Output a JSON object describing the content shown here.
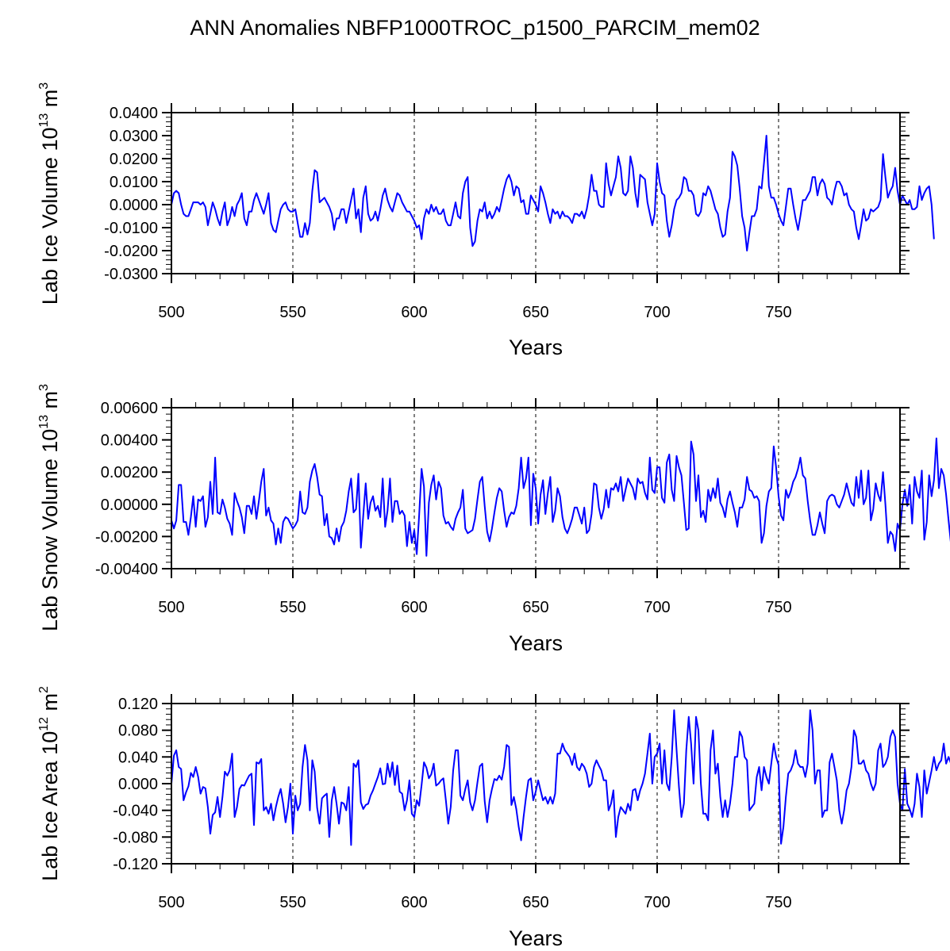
{
  "chart_data": [
    {
      "type": "line",
      "title": "ANN Anomalies NBFP1000TROC_p1500_PARCIM_mem02",
      "ylabel": "Lab Ice Volume 10^13 m^3",
      "ylabel_main": "Lab Ice Volume 10",
      "ylabel_exp": "13",
      "ylabel_unit": " m",
      "ylabel_unit_exp": "3",
      "xlabel": "Years",
      "xlim": [
        500,
        799
      ],
      "ylim": [
        -0.03,
        0.04
      ],
      "yticks": [
        0.04,
        0.03,
        0.02,
        0.01,
        0.0,
        -0.01,
        -0.02,
        -0.03
      ],
      "ytick_labels": [
        "0.0400",
        "0.0300",
        "0.0200",
        "0.0100",
        "0.0000",
        "-0.0100",
        "-0.0200",
        "-0.0300"
      ],
      "xticks": [
        500,
        550,
        600,
        650,
        700,
        750
      ],
      "xtick_labels": [
        "500",
        "550",
        "600",
        "650",
        "700",
        "750"
      ],
      "x_start": 500,
      "color": "#0000ff",
      "values": [
        0.0,
        0.005,
        0.006,
        0.005,
        0.0,
        -0.004,
        -0.005,
        -0.005,
        -0.002,
        0.001,
        0.001,
        0.001,
        0.0,
        0.001,
        -0.001,
        -0.009,
        -0.004,
        0.001,
        -0.002,
        -0.006,
        -0.009,
        -0.003,
        0.001,
        -0.009,
        -0.006,
        -0.001,
        -0.005,
        0.0,
        0.002,
        0.005,
        -0.006,
        -0.009,
        -0.003,
        -0.003,
        0.002,
        0.005,
        0.002,
        -0.001,
        -0.004,
        0.0,
        0.005,
        -0.008,
        -0.011,
        -0.012,
        -0.007,
        -0.002,
        0.0,
        0.001,
        -0.002,
        -0.003,
        -0.003,
        -0.002,
        -0.008,
        -0.014,
        -0.014,
        -0.008,
        -0.013,
        -0.008,
        0.006,
        0.015,
        0.014,
        0.001,
        0.002,
        0.003,
        0.001,
        -0.001,
        -0.004,
        -0.011,
        -0.006,
        -0.006,
        -0.002,
        -0.002,
        -0.008,
        -0.003,
        0.002,
        0.007,
        -0.006,
        -0.002,
        -0.012,
        0.003,
        0.008,
        -0.004,
        -0.007,
        -0.006,
        -0.003,
        -0.007,
        -0.002,
        0.004,
        0.007,
        0.002,
        -0.001,
        -0.003,
        0.001,
        0.005,
        0.004,
        0.001,
        -0.001,
        -0.003,
        -0.003,
        -0.005,
        -0.007,
        -0.01,
        -0.009,
        -0.015,
        -0.006,
        -0.002,
        -0.004,
        0.0,
        -0.003,
        -0.001,
        -0.004,
        -0.004,
        -0.002,
        -0.007,
        -0.009,
        -0.009,
        -0.004,
        0.001,
        -0.005,
        -0.006,
        0.005,
        0.01,
        0.012,
        -0.01,
        -0.018,
        -0.016,
        -0.007,
        -0.002,
        -0.003,
        0.001,
        -0.006,
        -0.003,
        -0.006,
        -0.004,
        -0.001,
        -0.003,
        0.002,
        0.007,
        0.011,
        0.013,
        0.01,
        0.004,
        0.008,
        0.007,
        0.001,
        0.002,
        -0.004,
        -0.004,
        0.004,
        0.002,
        0.0,
        -0.003,
        0.008,
        0.005,
        0.001,
        -0.004,
        -0.008,
        -0.002,
        -0.004,
        -0.003,
        -0.006,
        -0.003,
        -0.005,
        -0.005,
        -0.006,
        -0.008,
        -0.004,
        -0.004,
        -0.005,
        -0.003,
        -0.006,
        -0.002,
        0.004,
        0.013,
        0.006,
        0.006,
        0.0,
        -0.001,
        -0.001,
        0.018,
        0.009,
        0.004,
        0.008,
        0.012,
        0.021,
        0.016,
        0.005,
        0.004,
        0.006,
        0.021,
        0.016,
        0.005,
        -0.001,
        0.013,
        0.012,
        0.011,
        0.001,
        -0.004,
        -0.009,
        -0.004,
        0.018,
        0.01,
        0.005,
        0.004,
        -0.007,
        -0.014,
        -0.009,
        -0.002,
        0.002,
        0.003,
        0.005,
        0.012,
        0.011,
        0.006,
        0.006,
        0.004,
        -0.004,
        -0.005,
        -0.003,
        0.005,
        0.004,
        0.008,
        0.006,
        0.002,
        -0.002,
        -0.004,
        -0.01,
        -0.014,
        -0.013,
        -0.003,
        0.003,
        0.023,
        0.021,
        0.017,
        0.007,
        -0.005,
        -0.01,
        -0.02,
        -0.012,
        -0.005,
        -0.005,
        -0.002,
        0.008,
        0.007,
        0.018,
        0.03,
        0.008,
        0.003,
        0.003,
        0.0,
        -0.004,
        -0.007,
        -0.009,
        -0.001,
        0.007,
        0.007,
        0.0,
        -0.006,
        -0.011,
        -0.005,
        0.002,
        0.002,
        0.004,
        0.006,
        0.012,
        0.012,
        0.004,
        0.009,
        0.011,
        0.009,
        0.003,
        0.002,
        0.0,
        0.006,
        0.01,
        0.01,
        0.008,
        0.004,
        0.005,
        0.0,
        -0.002,
        -0.003,
        -0.01,
        -0.015,
        -0.009,
        -0.002,
        -0.007,
        -0.006,
        -0.002,
        -0.003,
        -0.002,
        -0.001,
        0.002,
        0.022,
        0.012,
        0.003,
        0.006,
        0.008,
        0.016,
        0.006,
        0.0,
        0.004,
        0.002,
        0.0,
        0.002,
        -0.002,
        -0.002,
        -0.001,
        0.008,
        0.002,
        0.005,
        0.007,
        0.008,
        0.0,
        -0.015
      ],
      "vlines": [
        550,
        600,
        650,
        700,
        750
      ]
    },
    {
      "type": "line",
      "ylabel": "Lab Snow Volume 10^13 m^3",
      "ylabel_main": "Lab Snow Volume 10",
      "ylabel_exp": "13",
      "ylabel_unit": " m",
      "ylabel_unit_exp": "3",
      "xlabel": "Years",
      "xlim": [
        500,
        799
      ],
      "ylim": [
        -0.004,
        0.006
      ],
      "yticks": [
        0.006,
        0.004,
        0.002,
        0.0,
        -0.002,
        -0.004
      ],
      "ytick_labels": [
        "0.00600",
        "0.00400",
        "0.00200",
        "0.00000",
        "-0.00200",
        "-0.00400"
      ],
      "xticks": [
        500,
        550,
        600,
        650,
        700,
        750
      ],
      "xtick_labels": [
        "500",
        "550",
        "600",
        "650",
        "700",
        "750"
      ],
      "x_start": 500,
      "color": "#0000ff",
      "values": [
        -0.001,
        -0.0015,
        -0.001,
        0.0012,
        0.0012,
        -0.0011,
        -0.0011,
        -0.0019,
        -0.0008,
        0.0005,
        -0.0014,
        0.0003,
        0.0002,
        0.0005,
        -0.0014,
        -0.0008,
        0.0014,
        -0.0006,
        0.0029,
        -0.0005,
        -0.0006,
        0.0003,
        -0.0002,
        -0.0009,
        -0.0012,
        -0.0019,
        0.0007,
        0.0002,
        -0.0002,
        -0.0008,
        -0.0018,
        -0.0001,
        -0.0001,
        -0.0006,
        0.0005,
        -0.0009,
        0.0002,
        0.0014,
        0.0022,
        -0.0007,
        -0.0002,
        -0.001,
        -0.0012,
        -0.0025,
        -0.0015,
        -0.0024,
        -0.0011,
        -0.0008,
        -0.0009,
        -0.0012,
        -0.0015,
        -0.0013,
        -0.001,
        0.0008,
        -0.0005,
        -0.0006,
        -0.0002,
        0.0014,
        0.0021,
        0.0025,
        0.0017,
        0.0006,
        0.0005,
        -0.0013,
        -0.0006,
        -0.002,
        -0.0021,
        -0.0025,
        -0.0015,
        -0.0023,
        -0.0014,
        -0.0011,
        -0.0004,
        0.0008,
        0.0016,
        -0.0005,
        -0.0003,
        0.0019,
        -0.0027,
        -0.0007,
        0.0013,
        -0.0009,
        0.0001,
        0.0005,
        -0.0004,
        -0.0001,
        -0.0008,
        0.0016,
        -0.0014,
        -0.0004,
        0.0016,
        -0.0011,
        0.0002,
        0.0002,
        -0.0006,
        -0.0004,
        -0.0007,
        -0.0026,
        -0.0011,
        -0.0024,
        -0.0016,
        -0.0031,
        -0.0007,
        0.0022,
        0.0011,
        -0.0032,
        0.0001,
        0.0012,
        0.0018,
        0.0003,
        0.0014,
        0.001,
        -0.0007,
        -0.0012,
        -0.0011,
        -0.0014,
        -0.0016,
        -0.0009,
        -0.0005,
        -0.0002,
        0.0009,
        -0.0015,
        -0.0018,
        -0.0017,
        -0.0016,
        -0.0009,
        0.0003,
        0.0014,
        0.0017,
        -0.0001,
        -0.0017,
        -0.0023,
        -0.0015,
        -0.0005,
        0.0004,
        0.001,
        0.0008,
        -0.0004,
        -0.0014,
        -0.0008,
        -0.0005,
        -0.0006,
        -0.0001,
        0.001,
        0.0029,
        0.001,
        0.0016,
        0.0029,
        -0.0013,
        0.0019,
        0.001,
        -0.0012,
        0.0006,
        0.0015,
        -0.0006,
        0.0007,
        0.0017,
        -0.0011,
        -0.0004,
        0.001,
        0.0005,
        -0.0008,
        -0.0015,
        -0.0018,
        -0.0014,
        -0.0009,
        -0.0002,
        -0.0002,
        -0.0007,
        -0.0012,
        -0.0002,
        -0.0018,
        -0.0016,
        -0.0006,
        0.0013,
        0.0012,
        -0.0002,
        -0.0009,
        -0.0003,
        0.0009,
        -0.0002,
        0.001,
        0.0009,
        0.0013,
        0.0008,
        0.0017,
        0.0002,
        0.0009,
        0.0016,
        0.0013,
        0.001,
        0.0003,
        0.0016,
        0.0013,
        0.0014,
        0.0007,
        0.0003,
        0.0029,
        0.0009,
        0.0007,
        0.0023,
        0.0023,
        0.0004,
        0.0001,
        0.0026,
        0.0031,
        0.0009,
        0.0002,
        0.003,
        0.0023,
        0.0018,
        0.0001,
        -0.0016,
        -0.0015,
        0.0039,
        0.0031,
        0.0002,
        0.0018,
        -0.0008,
        -0.0004,
        -0.0011,
        0.0009,
        0.0002,
        0.001,
        0.0004,
        0.0016,
        0.0001,
        -0.0002,
        -0.0008,
        0.0003,
        0.0008,
        0.0001,
        -0.0005,
        -0.0014,
        -0.0002,
        -0.0002,
        0.0003,
        0.0017,
        0.0009,
        0.0008,
        0.0004,
        0.0005,
        0.0002,
        -0.0024,
        -0.0018,
        -0.0001,
        0.0008,
        0.001,
        0.0036,
        0.0023,
        0.0005,
        -0.0007,
        -0.001,
        0.0009,
        0.0004,
        0.0008,
        0.0014,
        0.0017,
        0.0022,
        0.0029,
        0.0018,
        0.0016,
        0.0002,
        -0.001,
        -0.0019,
        -0.0019,
        -0.0013,
        -0.0005,
        -0.0012,
        -0.0018,
        0.0002,
        0.0005,
        0.0006,
        0.0005,
        0.0,
        -0.0002,
        0.0002,
        0.0006,
        0.0013,
        0.0007,
        0.0001,
        -0.0001,
        0.0017,
        0.0004,
        0.0021,
        0.0,
        0.0004,
        0.0021,
        -0.001,
        -0.0003,
        0.0013,
        0.0006,
        0.0002,
        0.002,
        0.0,
        -0.0024,
        -0.0017,
        -0.0019,
        -0.0029,
        -0.0012,
        -0.0016,
        0.0,
        0.0009,
        -0.0001,
        0.0012,
        -0.0012,
        0.0017,
        0.0008,
        0.0004,
        0.0021,
        -0.0022,
        -0.0011,
        0.0018,
        0.0005,
        0.0015,
        0.0041,
        0.001,
        0.0022,
        0.0018,
        0.0006,
        -0.001,
        -0.0025
      ],
      "vlines": [
        550,
        600,
        650,
        700,
        750
      ]
    },
    {
      "type": "line",
      "ylabel": "Lab Ice Area 10^12 m^2",
      "ylabel_main": "Lab Ice Area 10",
      "ylabel_exp": "12",
      "ylabel_unit": " m",
      "ylabel_unit_exp": "2",
      "xlabel": "Years",
      "xlim": [
        500,
        799
      ],
      "ylim": [
        -0.12,
        0.12
      ],
      "yticks": [
        0.12,
        0.08,
        0.04,
        0.0,
        -0.04,
        -0.08,
        -0.12
      ],
      "ytick_labels": [
        "0.120",
        "0.080",
        "0.040",
        "0.000",
        "-0.040",
        "-0.080",
        "-0.120"
      ],
      "xticks": [
        500,
        550,
        600,
        650,
        700,
        750
      ],
      "xtick_labels": [
        "500",
        "550",
        "600",
        "650",
        "700",
        "750"
      ],
      "x_start": 500,
      "color": "#0000ff",
      "values": [
        0.0,
        0.042,
        0.05,
        0.025,
        0.022,
        -0.025,
        -0.013,
        -0.004,
        0.016,
        0.01,
        0.025,
        0.01,
        -0.015,
        -0.005,
        -0.007,
        -0.035,
        -0.075,
        -0.047,
        -0.043,
        -0.02,
        -0.05,
        -0.02,
        0.018,
        0.012,
        0.02,
        0.045,
        -0.05,
        -0.035,
        -0.008,
        -0.002,
        -0.003,
        0.005,
        0.012,
        0.015,
        -0.062,
        0.032,
        0.03,
        0.037,
        -0.04,
        -0.035,
        -0.045,
        -0.03,
        -0.055,
        -0.035,
        -0.02,
        -0.008,
        -0.03,
        -0.058,
        -0.035,
        0.0,
        -0.075,
        -0.018,
        -0.04,
        -0.03,
        0.025,
        0.058,
        0.035,
        -0.04,
        0.035,
        0.018,
        -0.036,
        -0.06,
        -0.022,
        -0.018,
        -0.015,
        -0.08,
        -0.025,
        -0.005,
        -0.03,
        -0.06,
        -0.028,
        -0.03,
        -0.04,
        -0.005,
        -0.092,
        0.03,
        0.025,
        0.035,
        -0.028,
        -0.038,
        -0.032,
        -0.03,
        -0.018,
        -0.01,
        0.0,
        0.01,
        0.023,
        -0.001,
        0.0,
        0.03,
        0.01,
        0.032,
        -0.002,
        0.027,
        -0.012,
        -0.015,
        -0.04,
        -0.025,
        0.005,
        -0.045,
        -0.05,
        -0.025,
        -0.033,
        -0.002,
        0.032,
        0.024,
        0.008,
        0.014,
        0.03,
        -0.003,
        0.0,
        0.005,
        0.008,
        -0.025,
        -0.06,
        -0.035,
        0.02,
        0.05,
        0.05,
        -0.018,
        -0.025,
        -0.008,
        0.005,
        -0.028,
        -0.04,
        -0.025,
        0.002,
        0.026,
        0.03,
        -0.026,
        -0.058,
        -0.025,
        -0.008,
        0.007,
        0.005,
        0.012,
        0.006,
        0.025,
        0.058,
        0.055,
        -0.032,
        -0.02,
        -0.038,
        -0.065,
        -0.085,
        -0.05,
        -0.02,
        0.005,
        0.008,
        -0.025,
        -0.012,
        0.005,
        -0.01,
        -0.025,
        -0.02,
        -0.03,
        -0.02,
        -0.03,
        -0.015,
        0.045,
        0.045,
        0.06,
        0.05,
        0.045,
        0.04,
        0.028,
        0.045,
        0.025,
        0.02,
        0.03,
        0.025,
        0.015,
        -0.005,
        0.0,
        0.025,
        0.035,
        0.027,
        0.02,
        0.005,
        0.005,
        -0.04,
        -0.03,
        -0.01,
        -0.08,
        -0.05,
        -0.035,
        -0.04,
        -0.045,
        -0.03,
        -0.04,
        -0.01,
        -0.008,
        -0.025,
        -0.01,
        0.0,
        0.015,
        0.045,
        0.075,
        0.0,
        0.04,
        0.045,
        0.06,
        0.0,
        0.05,
        0.0,
        -0.01,
        0.04,
        0.11,
        0.05,
        -0.005,
        -0.05,
        -0.03,
        0.05,
        0.1,
        0.06,
        0.0,
        0.1,
        0.08,
        0.0,
        -0.045,
        -0.045,
        -0.055,
        0.05,
        0.08,
        0.015,
        0.03,
        -0.02,
        -0.05,
        -0.025,
        -0.05,
        -0.03,
        0.0,
        0.04,
        0.04,
        0.078,
        0.07,
        0.04,
        0.035,
        -0.04,
        -0.035,
        -0.03,
        0.01,
        0.025,
        -0.01,
        0.025,
        0.01,
        0.0,
        0.03,
        0.06,
        0.04,
        0.028,
        -0.09,
        -0.065,
        -0.02,
        0.015,
        0.02,
        0.03,
        0.05,
        0.03,
        0.025,
        0.025,
        0.01,
        0.03,
        0.11,
        0.08,
        0.0,
        0.02,
        0.02,
        -0.05,
        -0.04,
        -0.04,
        0.032,
        0.045,
        0.025,
        0.005,
        -0.04,
        -0.06,
        -0.04,
        -0.01,
        0.0,
        0.025,
        0.08,
        0.07,
        0.03,
        0.03,
        0.035,
        0.02,
        0.015,
        0.0,
        -0.01,
        0.0,
        0.05,
        0.06,
        0.025,
        0.03,
        0.04,
        0.07,
        0.08,
        0.07,
        0.0,
        -0.03,
        -0.04,
        0.022,
        -0.03,
        -0.038,
        -0.05,
        -0.03,
        0.015,
        -0.005,
        -0.05,
        0.02,
        -0.015,
        0.002,
        0.02,
        0.04,
        0.02,
        0.03,
        0.035,
        0.06,
        0.03,
        0.04,
        0.03,
        -0.03
      ],
      "vlines": [
        550,
        600,
        650,
        700,
        750
      ]
    }
  ]
}
